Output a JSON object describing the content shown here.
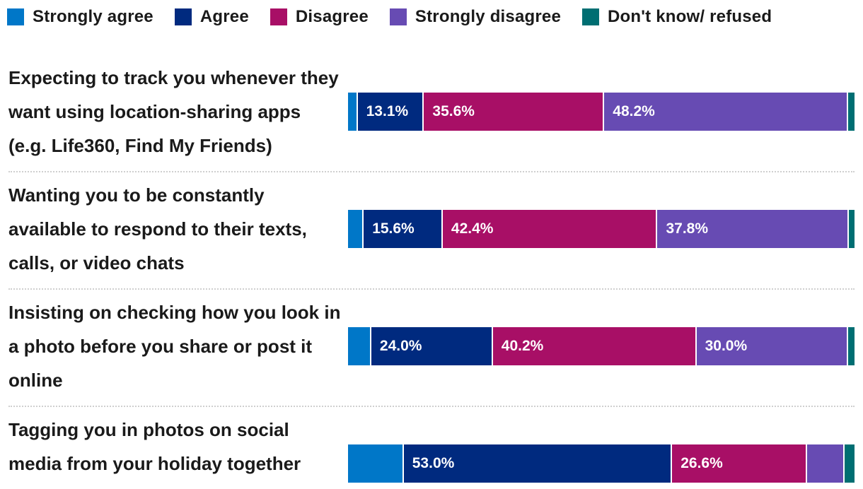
{
  "colors": {
    "Strongly agree": "#0077c8",
    "Agree": "#002a7f",
    "Disagree": "#a80f66",
    "Strongly disagree": "#674bb3",
    "Don't know/ refused": "#006e72"
  },
  "legend": [
    {
      "label": "Strongly agree",
      "color": "#0077c8"
    },
    {
      "label": "Agree",
      "color": "#002a7f"
    },
    {
      "label": "Disagree",
      "color": "#a80f66"
    },
    {
      "label": "Strongly disagree",
      "color": "#674bb3"
    },
    {
      "label": "Don't know/ refused",
      "color": "#006e72"
    }
  ],
  "chart_data": {
    "type": "bar",
    "orientation": "horizontal",
    "stacked": true,
    "unit": "%",
    "legend_position": "top",
    "categories": [
      "Expecting to track you whenever they want using location-sharing apps (e.g. Life360, Find My Friends)",
      "Wanting you to be constantly available to respond to their texts, calls, or video chats",
      "Insisting on checking how you look in a photo before you share or post it online",
      "Tagging you in photos on social media from your holiday together"
    ],
    "series": [
      {
        "name": "Strongly agree",
        "values": [
          1.9,
          3.1,
          4.6,
          11.0
        ]
      },
      {
        "name": "Agree",
        "values": [
          13.1,
          15.6,
          24.0,
          53.0
        ]
      },
      {
        "name": "Disagree",
        "values": [
          35.6,
          42.4,
          40.2,
          26.6
        ]
      },
      {
        "name": "Strongly disagree",
        "values": [
          48.2,
          37.8,
          30.0,
          7.4
        ]
      },
      {
        "name": "Don't know/ refused",
        "values": [
          1.2,
          1.1,
          1.2,
          2.0
        ]
      }
    ],
    "data_labels": [
      [
        "",
        "13.1%",
        "35.6%",
        "48.2%",
        ""
      ],
      [
        "",
        "15.6%",
        "42.4%",
        "37.8%",
        ""
      ],
      [
        "",
        "24.0%",
        "40.2%",
        "30.0%",
        ""
      ],
      [
        "",
        "53.0%",
        "26.6%",
        "",
        ""
      ]
    ]
  }
}
